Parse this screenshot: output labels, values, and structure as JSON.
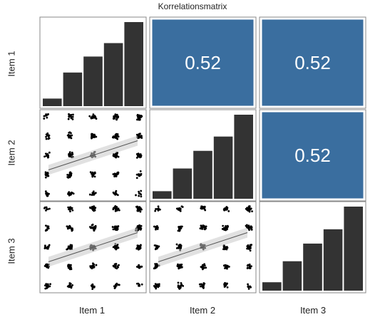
{
  "title": "Korrelationsmatrix",
  "items": [
    "Item 1",
    "Item 2",
    "Item 3"
  ],
  "colors": {
    "bar": "#333333",
    "corr_fill": "#3a6e9f",
    "corr_text": "#ffffff",
    "point": "#000000",
    "panel_border": "#888888",
    "fit_line": "#555555",
    "fit_band": "#c8c8c8"
  },
  "chart_data": {
    "type": "scatterplot-matrix",
    "title": "Korrelationsmatrix",
    "variables": [
      "Item 1",
      "Item 2",
      "Item 3"
    ],
    "diagonal": {
      "type": "bar",
      "categories": [
        1,
        2,
        3,
        4,
        5
      ],
      "relative_heights": [
        [
          0.09,
          0.4,
          0.59,
          0.75,
          1.0
        ],
        [
          0.09,
          0.36,
          0.57,
          0.74,
          1.0
        ],
        [
          0.1,
          0.35,
          0.56,
          0.73,
          1.0
        ]
      ]
    },
    "upper": {
      "type": "correlation",
      "cells": [
        {
          "row": "Item 1",
          "col": "Item 2",
          "r": "0.52"
        },
        {
          "row": "Item 1",
          "col": "Item 3",
          "r": "0.52"
        },
        {
          "row": "Item 2",
          "col": "Item 3",
          "r": "0.52"
        }
      ]
    },
    "lower": {
      "type": "scatter",
      "jitter": true,
      "categories": [
        1,
        2,
        3,
        4,
        5
      ],
      "fit_line": "linear with confidence band",
      "cells": [
        {
          "row": "Item 2",
          "col": "Item 1"
        },
        {
          "row": "Item 3",
          "col": "Item 1"
        },
        {
          "row": "Item 3",
          "col": "Item 2"
        }
      ]
    }
  }
}
